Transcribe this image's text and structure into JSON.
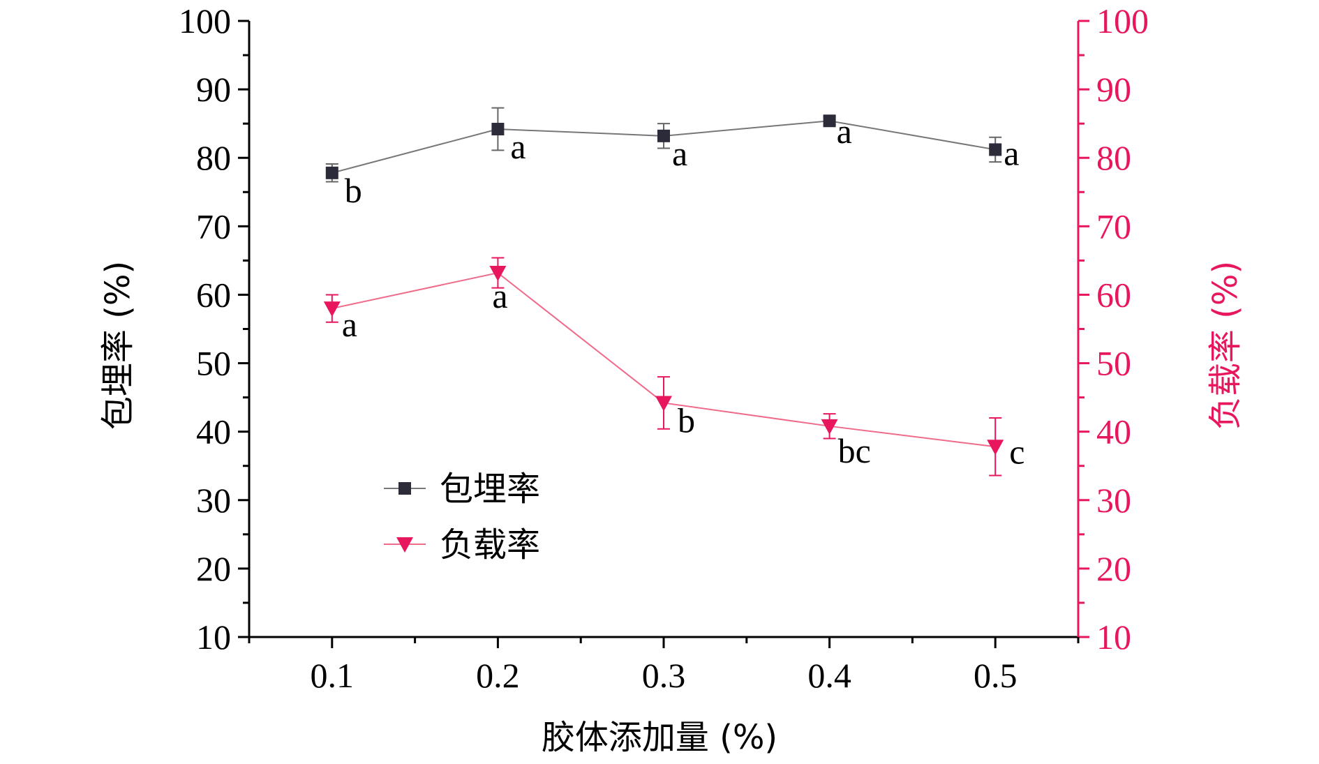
{
  "chart_data": {
    "type": "line",
    "x": [
      0.1,
      0.2,
      0.3,
      0.4,
      0.5
    ],
    "x_ticks": [
      "0.1",
      "0.2",
      "0.3",
      "0.4",
      "0.5"
    ],
    "xlim": [
      0.05,
      0.55
    ],
    "xlabel": "胶体添加量 (%)",
    "y_left": {
      "label": "包埋率 (%)",
      "lim": [
        10,
        100
      ],
      "ticks": [
        "10",
        "20",
        "30",
        "40",
        "50",
        "60",
        "70",
        "80",
        "90",
        "100"
      ],
      "color": "#000000"
    },
    "y_right": {
      "label": "负载率 (%)",
      "lim": [
        10,
        100
      ],
      "ticks": [
        "10",
        "20",
        "30",
        "40",
        "50",
        "60",
        "70",
        "80",
        "90",
        "100"
      ],
      "color": "#e8175d"
    },
    "series": [
      {
        "name": "包埋率",
        "axis": "left",
        "marker": "square",
        "color": "#2b2b3a",
        "line_color": "#777777",
        "values": [
          77.8,
          84.2,
          83.2,
          85.4,
          81.2
        ],
        "errors": [
          1.3,
          3.1,
          1.8,
          0.6,
          1.8
        ],
        "labels": [
          "b",
          "a",
          "a",
          "a",
          "a"
        ]
      },
      {
        "name": "负载率",
        "axis": "right",
        "marker": "triangle-down",
        "color": "#e8175d",
        "line_color": "#f06a8a",
        "values": [
          58.0,
          63.2,
          44.2,
          40.8,
          37.8
        ],
        "errors": [
          2.0,
          2.2,
          3.8,
          1.8,
          4.2
        ],
        "labels": [
          "a",
          "a",
          "b",
          "bc",
          "c"
        ]
      }
    ],
    "legend": {
      "position": "lower-left-inside"
    },
    "grid": false
  }
}
